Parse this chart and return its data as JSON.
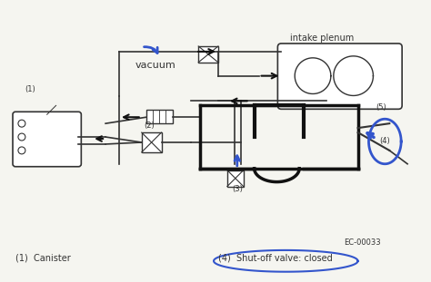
{
  "title": "",
  "bg_color": "#f5f5f0",
  "line_color": "#333333",
  "blue_color": "#3355cc",
  "thick_line_color": "#111111",
  "label_1": "(1)  Canister",
  "label_4": "(4)  Shut-off valve: closed",
  "ec_code": "EC-00033",
  "intake_plenum_text": "intake plenum",
  "vacuum_text": "vacuum",
  "font_size": 7
}
